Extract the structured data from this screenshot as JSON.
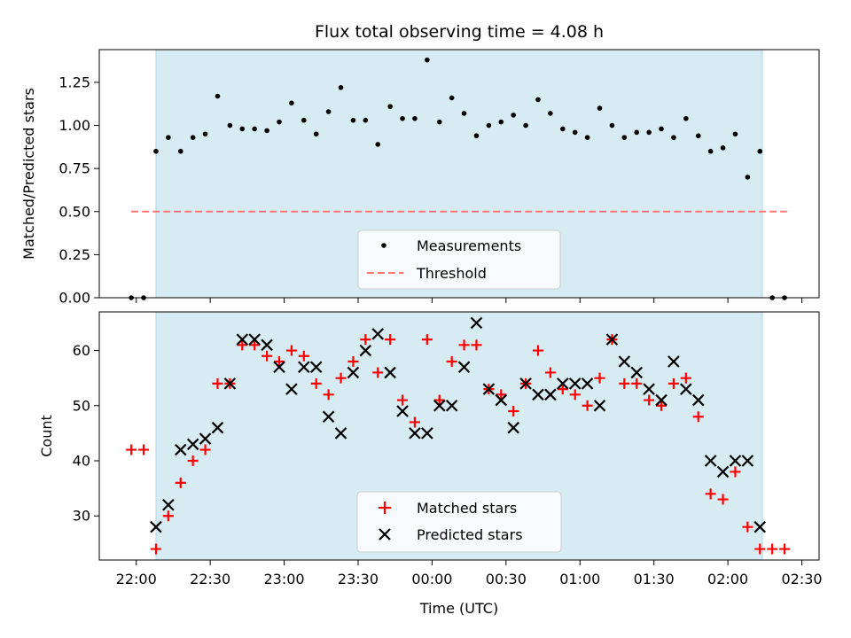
{
  "chart_data": [
    {
      "type": "scatter",
      "title": "Flux total observing time = 4.08 h",
      "xlabel": "",
      "ylabel": "Matched/Predicted stars",
      "ylim": [
        0,
        1.44
      ],
      "yticks": [
        "0.00",
        "0.25",
        "0.50",
        "0.75",
        "1.00",
        "1.25"
      ],
      "ytick_values": [
        0,
        0.25,
        0.5,
        0.75,
        1.0,
        1.25
      ],
      "observing_window": [
        "22:08",
        "02:14"
      ],
      "threshold": {
        "name": "Threshold",
        "y": 0.5,
        "x_range": [
          "21:58",
          "02:24"
        ],
        "color": "#ff7777"
      },
      "series": [
        {
          "name": "Measurements",
          "color": "#000000",
          "marker": "dot",
          "x": [
            "21:58",
            "22:03",
            "22:08",
            "22:13",
            "22:18",
            "22:23",
            "22:28",
            "22:33",
            "22:38",
            "22:43",
            "22:48",
            "22:53",
            "22:58",
            "23:03",
            "23:08",
            "23:13",
            "23:18",
            "23:23",
            "23:28",
            "23:33",
            "23:38",
            "23:43",
            "23:48",
            "23:53",
            "23:58",
            "00:03",
            "00:08",
            "00:13",
            "00:18",
            "00:23",
            "00:28",
            "00:33",
            "00:38",
            "00:43",
            "00:48",
            "00:53",
            "00:58",
            "01:03",
            "01:08",
            "01:13",
            "01:18",
            "01:23",
            "01:28",
            "01:33",
            "01:38",
            "01:43",
            "01:48",
            "01:53",
            "01:58",
            "02:03",
            "02:08",
            "02:13",
            "02:18",
            "02:23"
          ],
          "y": [
            0,
            0,
            0.85,
            0.93,
            0.85,
            0.93,
            0.95,
            1.17,
            1.0,
            0.98,
            0.98,
            0.97,
            1.02,
            1.13,
            1.03,
            0.95,
            1.08,
            1.22,
            1.03,
            1.03,
            0.89,
            1.11,
            1.04,
            1.04,
            1.38,
            1.02,
            1.16,
            1.07,
            0.94,
            1.0,
            1.02,
            1.06,
            1.0,
            1.15,
            1.07,
            0.98,
            0.96,
            0.93,
            1.1,
            1.0,
            0.93,
            0.96,
            0.96,
            0.98,
            0.93,
            1.04,
            0.94,
            0.85,
            0.87,
            0.95,
            0.7,
            0.85,
            0,
            0
          ]
        }
      ],
      "legend": {
        "placement": "lower center",
        "entries": [
          "Measurements",
          "Threshold"
        ]
      }
    },
    {
      "type": "scatter",
      "title": "",
      "xlabel": "Time (UTC)",
      "ylabel": "Count",
      "ylim": [
        22,
        67
      ],
      "yticks": [
        "30",
        "40",
        "50",
        "60"
      ],
      "ytick_values": [
        30,
        40,
        50,
        60
      ],
      "xticks": [
        "22:00",
        "22:30",
        "23:00",
        "23:30",
        "00:00",
        "00:30",
        "01:00",
        "01:30",
        "02:00",
        "02:30"
      ],
      "xlim": [
        "21:45",
        "02:37"
      ],
      "observing_window": [
        "22:08",
        "02:14"
      ],
      "series": [
        {
          "name": "Matched stars",
          "color": "#ff0000",
          "marker": "plus",
          "x": [
            "21:58",
            "22:03",
            "22:08",
            "22:13",
            "22:18",
            "22:23",
            "22:28",
            "22:33",
            "22:38",
            "22:43",
            "22:48",
            "22:53",
            "22:58",
            "23:03",
            "23:08",
            "23:13",
            "23:18",
            "23:23",
            "23:28",
            "23:33",
            "23:38",
            "23:43",
            "23:48",
            "23:53",
            "23:58",
            "00:03",
            "00:08",
            "00:13",
            "00:18",
            "00:23",
            "00:28",
            "00:33",
            "00:38",
            "00:43",
            "00:48",
            "00:53",
            "00:58",
            "01:03",
            "01:08",
            "01:13",
            "01:18",
            "01:23",
            "01:28",
            "01:33",
            "01:38",
            "01:43",
            "01:48",
            "01:53",
            "01:58",
            "02:03",
            "02:08",
            "02:13",
            "02:18",
            "02:23"
          ],
          "y": [
            42,
            42,
            24,
            30,
            36,
            40,
            42,
            54,
            54,
            61,
            61,
            59,
            58,
            60,
            59,
            54,
            52,
            55,
            58,
            62,
            56,
            62,
            51,
            47,
            62,
            51,
            58,
            61,
            61,
            53,
            52,
            49,
            54,
            60,
            56,
            53,
            52,
            50,
            55,
            62,
            54,
            54,
            51,
            50,
            54,
            55,
            48,
            34,
            33,
            38,
            28,
            24,
            24,
            24
          ]
        },
        {
          "name": "Predicted stars",
          "color": "#000000",
          "marker": "x",
          "x": [
            "22:08",
            "22:13",
            "22:18",
            "22:23",
            "22:28",
            "22:33",
            "22:38",
            "22:43",
            "22:48",
            "22:53",
            "22:58",
            "23:03",
            "23:08",
            "23:13",
            "23:18",
            "23:23",
            "23:28",
            "23:33",
            "23:38",
            "23:43",
            "23:48",
            "23:53",
            "23:58",
            "00:03",
            "00:08",
            "00:13",
            "00:18",
            "00:23",
            "00:28",
            "00:33",
            "00:38",
            "00:43",
            "00:48",
            "00:53",
            "00:58",
            "01:03",
            "01:08",
            "01:13",
            "01:18",
            "01:23",
            "01:28",
            "01:33",
            "01:38",
            "01:43",
            "01:48",
            "01:53",
            "01:58",
            "02:03",
            "02:08",
            "02:13"
          ],
          "y": [
            28,
            32,
            42,
            43,
            44,
            46,
            54,
            62,
            62,
            61,
            57,
            53,
            57,
            57,
            48,
            45,
            56,
            60,
            63,
            56,
            49,
            45,
            45,
            50,
            50,
            57,
            65,
            53,
            51,
            46,
            54,
            52,
            52,
            54,
            54,
            54,
            50,
            62,
            58,
            56,
            53,
            51,
            58,
            53,
            51,
            40,
            38,
            40,
            40,
            28
          ]
        }
      ],
      "legend": {
        "placement": "lower center",
        "entries": [
          "Matched stars",
          "Predicted stars"
        ]
      }
    }
  ]
}
